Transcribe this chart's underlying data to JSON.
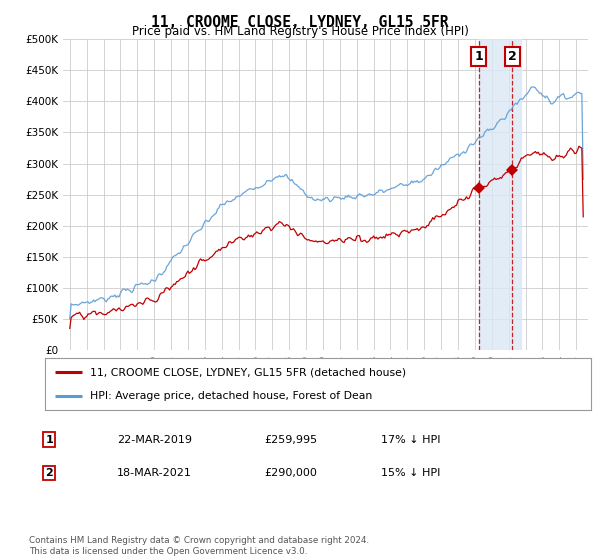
{
  "title": "11, CROOME CLOSE, LYDNEY, GL15 5FR",
  "subtitle": "Price paid vs. HM Land Registry's House Price Index (HPI)",
  "ylabel_ticks": [
    "£0",
    "£50K",
    "£100K",
    "£150K",
    "£200K",
    "£250K",
    "£300K",
    "£350K",
    "£400K",
    "£450K",
    "£500K"
  ],
  "ytick_values": [
    0,
    50000,
    100000,
    150000,
    200000,
    250000,
    300000,
    350000,
    400000,
    450000,
    500000
  ],
  "ylim": [
    0,
    500000
  ],
  "hpi_color": "#5b9bd5",
  "price_color": "#c00000",
  "highlight_color": "#dae8f5",
  "sale1_date_num": 2019.22,
  "sale1_price": 259995,
  "sale2_date_num": 2021.21,
  "sale2_price": 290000,
  "legend_label_price": "11, CROOME CLOSE, LYDNEY, GL15 5FR (detached house)",
  "legend_label_hpi": "HPI: Average price, detached house, Forest of Dean",
  "table_row1": [
    "1",
    "22-MAR-2019",
    "£259,995",
    "17% ↓ HPI"
  ],
  "table_row2": [
    "2",
    "18-MAR-2021",
    "£290,000",
    "15% ↓ HPI"
  ],
  "footnote": "Contains HM Land Registry data © Crown copyright and database right 2024.\nThis data is licensed under the Open Government Licence v3.0.",
  "background_color": "#ffffff",
  "grid_color": "#cccccc"
}
